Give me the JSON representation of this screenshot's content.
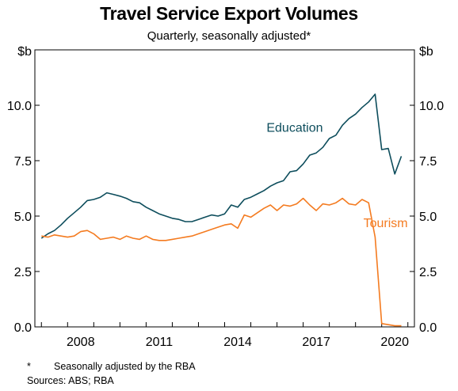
{
  "title": "Travel Service Export Volumes",
  "subtitle": "Quarterly, seasonally adjusted*",
  "footnotes": {
    "marker": "*",
    "seasonal": "Seasonally adjusted by the RBA",
    "sources": "Sources: ABS; RBA"
  },
  "chart_data": {
    "type": "line",
    "title": "Travel Service Export Volumes",
    "subtitle": "Quarterly, seasonally adjusted*",
    "yunit_left": "$b",
    "yunit_right": "$b",
    "ylim": [
      0,
      12.5
    ],
    "yticks": [
      "0.0",
      "2.5",
      "5.0",
      "7.5",
      "10.0"
    ],
    "ytick_values": [
      0,
      2.5,
      5,
      7.5,
      10
    ],
    "xlim": [
      2006.75,
      2021.25
    ],
    "xticks": [
      "2008",
      "2011",
      "2014",
      "2017",
      "2020"
    ],
    "xtick_values": [
      2008,
      2011,
      2014,
      2017,
      2020
    ],
    "grid": false,
    "legend": "inline labels",
    "series": [
      {
        "name": "Education",
        "color": "#0d4d5c",
        "label_at": [
          2015.6,
          8.8
        ],
        "x": [
          2007.0,
          2007.25,
          2007.5,
          2007.75,
          2008.0,
          2008.25,
          2008.5,
          2008.75,
          2009.0,
          2009.25,
          2009.5,
          2009.75,
          2010.0,
          2010.25,
          2010.5,
          2010.75,
          2011.0,
          2011.25,
          2011.5,
          2011.75,
          2012.0,
          2012.25,
          2012.5,
          2012.75,
          2013.0,
          2013.25,
          2013.5,
          2013.75,
          2014.0,
          2014.25,
          2014.5,
          2014.75,
          2015.0,
          2015.25,
          2015.5,
          2015.75,
          2016.0,
          2016.25,
          2016.5,
          2016.75,
          2017.0,
          2017.25,
          2017.5,
          2017.75,
          2018.0,
          2018.25,
          2018.5,
          2018.75,
          2019.0,
          2019.25,
          2019.5,
          2019.75,
          2020.0,
          2020.25,
          2020.5,
          2020.75
        ],
        "values": [
          4.0,
          4.2,
          4.35,
          4.6,
          4.9,
          5.15,
          5.4,
          5.7,
          5.75,
          5.85,
          6.05,
          5.98,
          5.9,
          5.8,
          5.65,
          5.6,
          5.4,
          5.25,
          5.1,
          5.0,
          4.9,
          4.85,
          4.75,
          4.75,
          4.85,
          4.95,
          5.05,
          5.0,
          5.1,
          5.5,
          5.4,
          5.75,
          5.85,
          6.0,
          6.15,
          6.35,
          6.5,
          6.6,
          7.0,
          7.05,
          7.35,
          7.75,
          7.85,
          8.1,
          8.5,
          8.65,
          9.1,
          9.4,
          9.6,
          9.9,
          10.15,
          10.5,
          8.0,
          8.05,
          6.9,
          7.7
        ]
      },
      {
        "name": "Tourism",
        "color": "#f47b20",
        "label_at": [
          2019.3,
          4.5
        ],
        "x": [
          2007.0,
          2007.25,
          2007.5,
          2007.75,
          2008.0,
          2008.25,
          2008.5,
          2008.75,
          2009.0,
          2009.25,
          2009.5,
          2009.75,
          2010.0,
          2010.25,
          2010.5,
          2010.75,
          2011.0,
          2011.25,
          2011.5,
          2011.75,
          2012.0,
          2012.25,
          2012.5,
          2012.75,
          2013.0,
          2013.25,
          2013.5,
          2013.75,
          2014.0,
          2014.25,
          2014.5,
          2014.75,
          2015.0,
          2015.25,
          2015.5,
          2015.75,
          2016.0,
          2016.25,
          2016.5,
          2016.75,
          2017.0,
          2017.25,
          2017.5,
          2017.75,
          2018.0,
          2018.25,
          2018.5,
          2018.75,
          2019.0,
          2019.25,
          2019.5,
          2019.75,
          2020.0,
          2020.25,
          2020.5,
          2020.75
        ],
        "values": [
          4.1,
          4.05,
          4.15,
          4.1,
          4.05,
          4.1,
          4.3,
          4.35,
          4.2,
          3.95,
          4.0,
          4.05,
          3.95,
          4.1,
          4.0,
          3.95,
          4.1,
          3.95,
          3.9,
          3.9,
          3.95,
          4.0,
          4.05,
          4.1,
          4.2,
          4.3,
          4.4,
          4.5,
          4.6,
          4.65,
          4.45,
          5.05,
          4.95,
          5.15,
          5.35,
          5.5,
          5.25,
          5.5,
          5.45,
          5.55,
          5.8,
          5.5,
          5.25,
          5.55,
          5.5,
          5.6,
          5.8,
          5.55,
          5.5,
          5.75,
          5.6,
          4.05,
          0.15,
          0.1,
          0.05,
          0.05
        ]
      }
    ]
  }
}
